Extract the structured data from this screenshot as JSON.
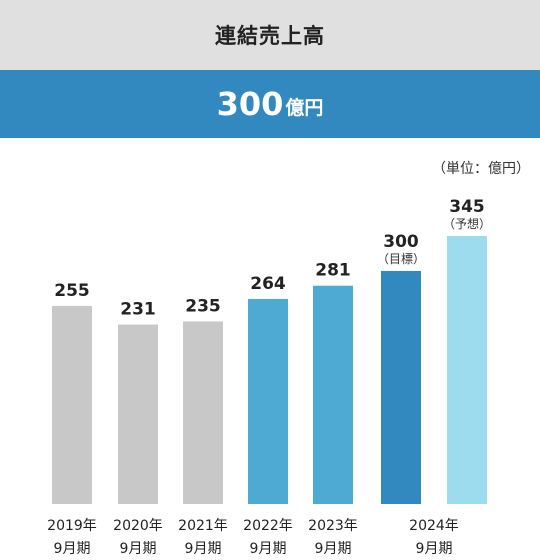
{
  "header": {
    "title": "連結売上高"
  },
  "banner": {
    "value": "300",
    "unit": "億円"
  },
  "chart_data": {
    "type": "bar",
    "unit_note": "（単位：億円）",
    "categories": [
      [
        "2019年",
        "9月期"
      ],
      [
        "2020年",
        "9月期"
      ],
      [
        "2021年",
        "9月期"
      ],
      [
        "2022年",
        "9月期"
      ],
      [
        "2023年",
        "9月期"
      ],
      [
        "2024年",
        "9月期"
      ]
    ],
    "bars": [
      {
        "category_index": 0,
        "value": 255,
        "label": "255",
        "note": "",
        "color": "#c8c8c8"
      },
      {
        "category_index": 1,
        "value": 231,
        "label": "231",
        "note": "",
        "color": "#c8c8c8"
      },
      {
        "category_index": 2,
        "value": 235,
        "label": "235",
        "note": "",
        "color": "#c8c8c8"
      },
      {
        "category_index": 3,
        "value": 264,
        "label": "264",
        "note": "",
        "color": "#4faad3"
      },
      {
        "category_index": 4,
        "value": 281,
        "label": "281",
        "note": "",
        "color": "#4faad3"
      },
      {
        "category_index": 5,
        "value": 300,
        "label": "300",
        "note": "（目標）",
        "color": "#3189bf"
      },
      {
        "category_index": 5,
        "value": 345,
        "label": "345",
        "note": "（予想）",
        "color": "#9ddcef"
      }
    ],
    "ylim": [
      0,
      360
    ],
    "grid": false,
    "xlabel": "",
    "ylabel": ""
  }
}
